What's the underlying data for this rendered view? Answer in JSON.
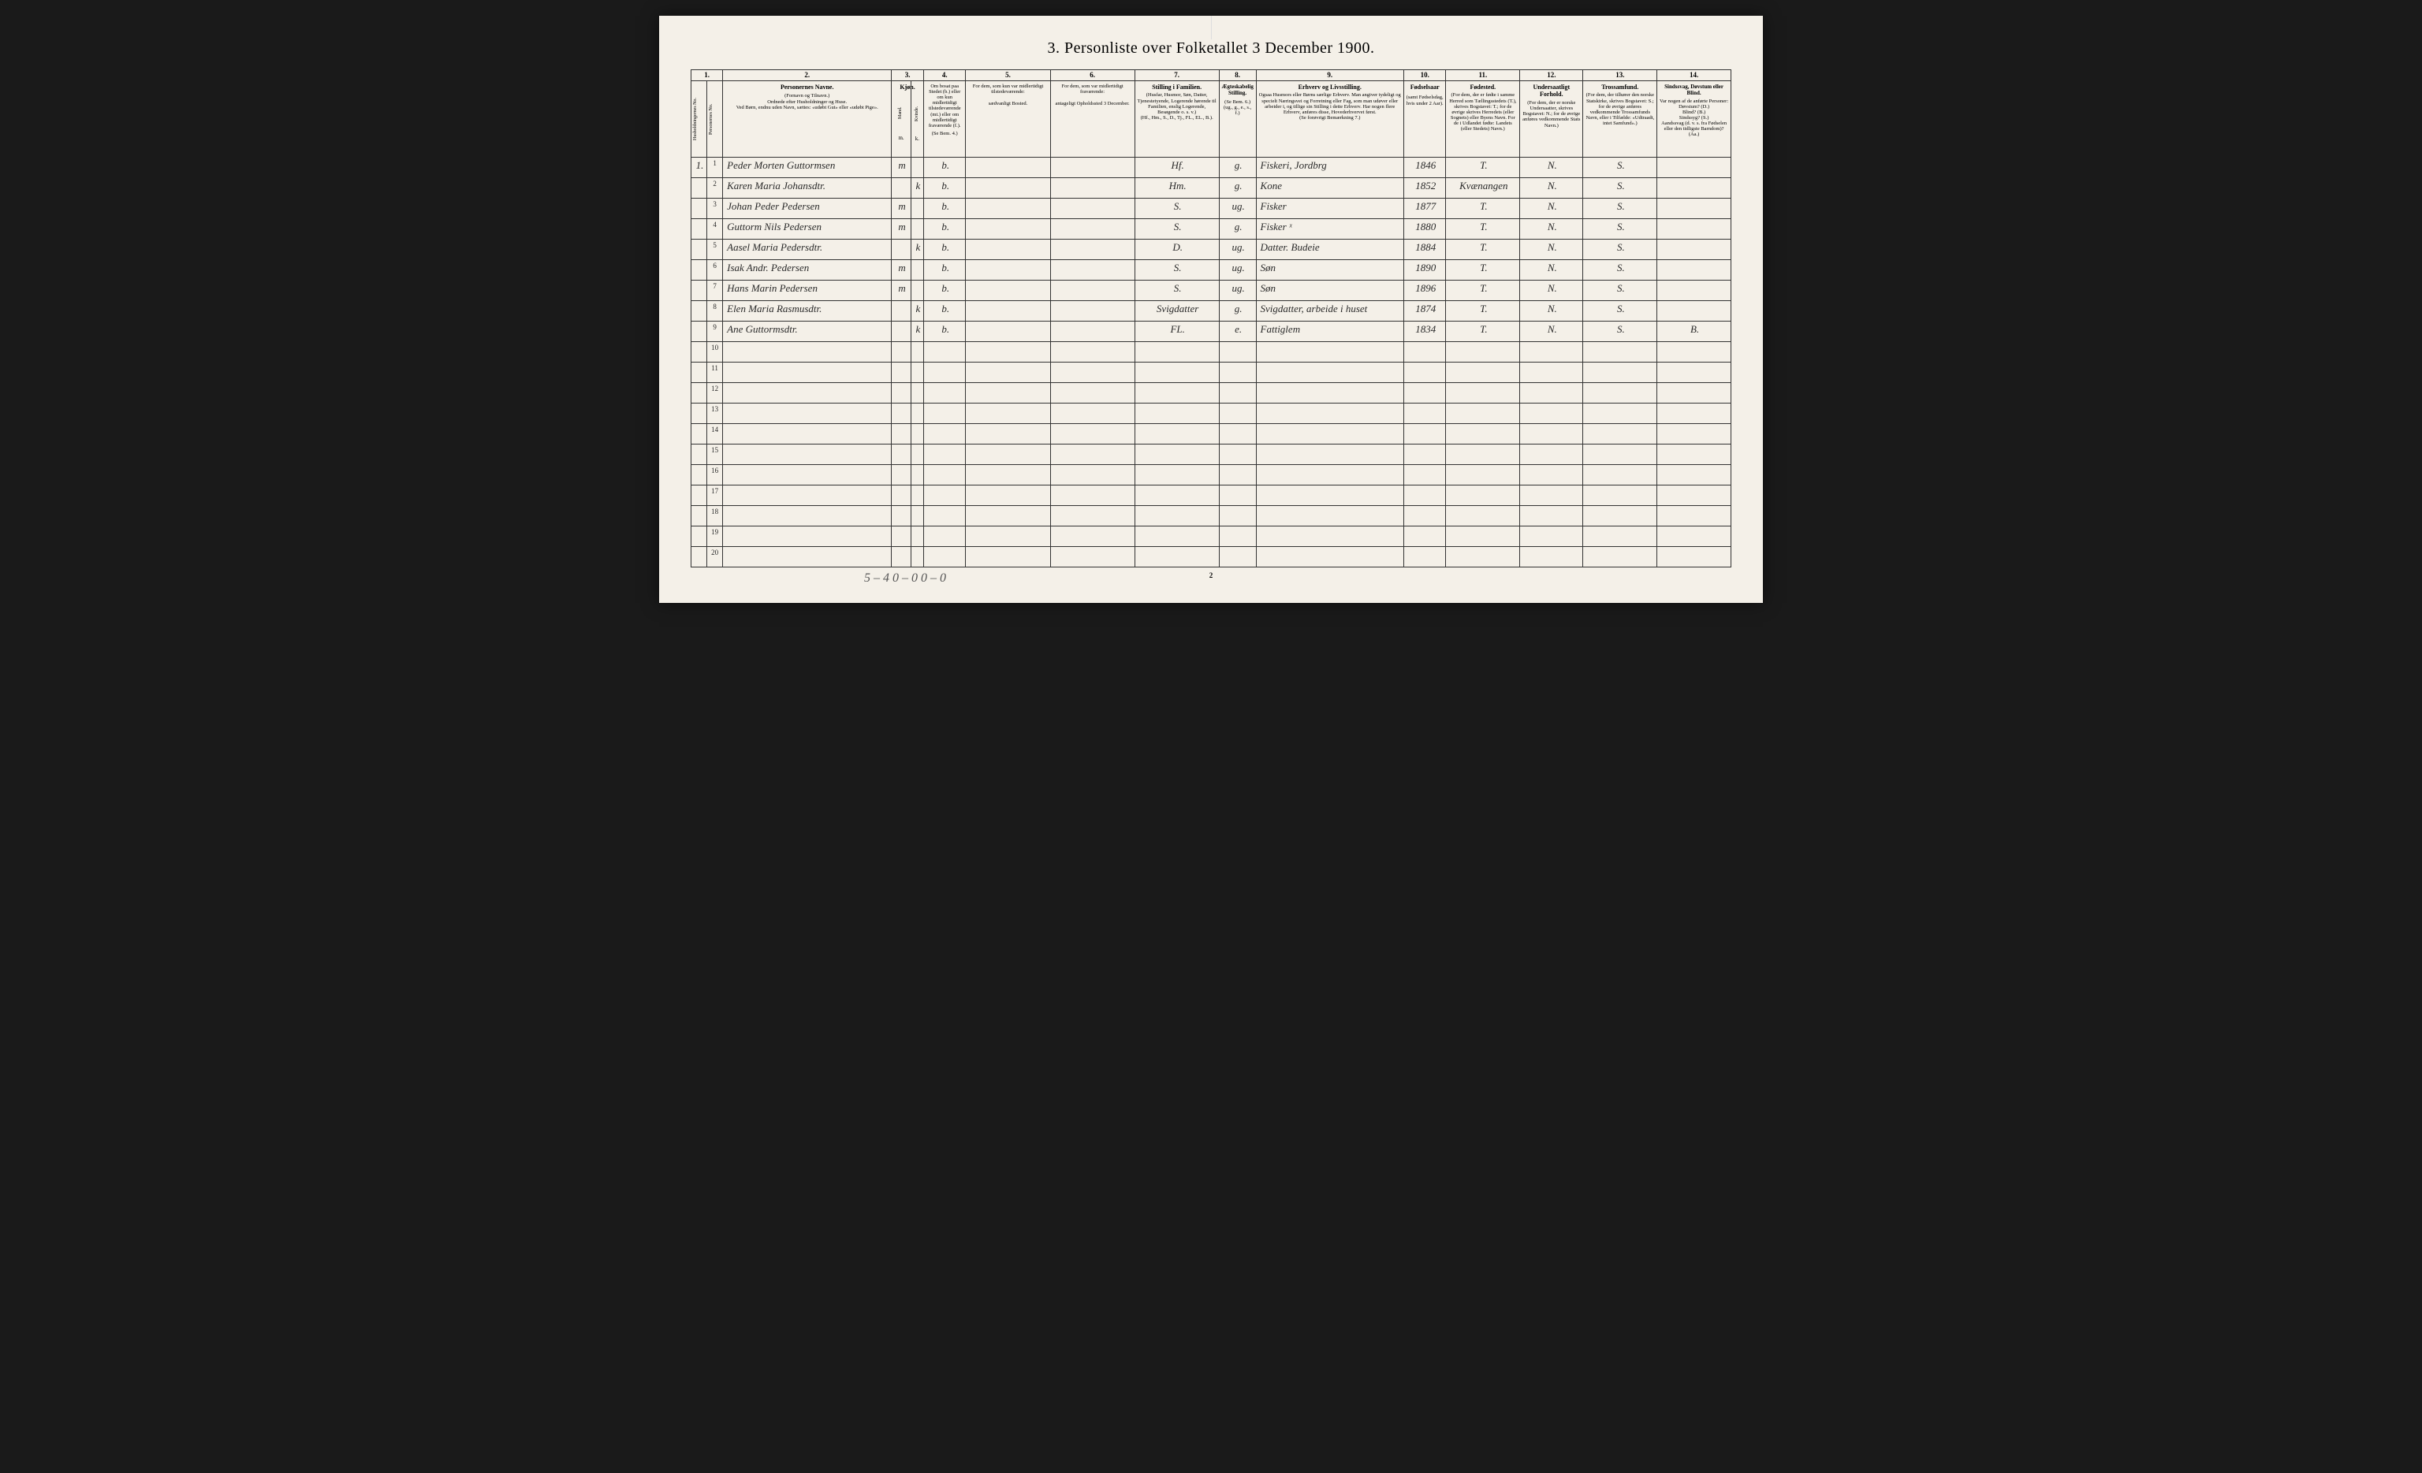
{
  "title": "3. Personliste over Folketallet 3 December 1900.",
  "column_numbers": [
    "1.",
    "",
    "2.",
    "3.",
    "",
    "4.",
    "5.",
    "6.",
    "7.",
    "8.",
    "9.",
    "10.",
    "11.",
    "12.",
    "13.",
    "14."
  ],
  "headers": {
    "col1": "Husholdningernes No.",
    "col1b": "Personernes No.",
    "col2_title": "Personernes Navne.",
    "col2_sub": "(Fornavn og Tilnavn.)\nOrdnede efter Husholdninger og Huse.\nVed Børn, endnu uden Navn, sættes: «udøbt Gut» eller «udøbt Pige».",
    "col3_title": "Kjøn.",
    "col3a": "Mand.",
    "col3b": "Kvinde.",
    "col3_foot": "m. k.",
    "col4_title": "Om bosat paa Stedet (b.) eller om kun midlertidigt tilstedeværende (mt.) eller om midlertidigt fraværende (f.).",
    "col4_foot": "(Se Bem. 4.)",
    "col5_title": "For dem, som kun var midlertidigt tilstedeværende:",
    "col5_sub": "sædvanligt Bosted.",
    "col6_title": "For dem, som var midlertidigt fraværende:",
    "col6_sub": "antageligt Opholdssted 3 December.",
    "col7_title": "Stilling i Familien.",
    "col7_sub": "(Husfar, Husmor, Søn, Datter, Tjenestetyende, Logerende hørende til Familien, enslig Logerende, Besøgende o. s. v.)\n(Hf., Hm., S., D., Tj., FL., EL., B.).",
    "col8_title": "Ægteskabelig Stilling.",
    "col8_sub": "(Se Bem. 6.)\n(ug., g., e., s., f.)",
    "col9_title": "Erhverv og Livsstilling.",
    "col9_sub": "Ogsaa Husmors eller Børns særlige Erhverv. Man angiver tydeligt og specielt Næringsvei og Forretning eller Fag, som man udøver eller arbeider i, og tillige sin Stilling i dette Erhverv. Har nogen flere Erhverv, anføres disse, Hovederhvervet først.\n(Se forøvrigt Bemærkning 7.)",
    "col10_title": "Fødselsaar",
    "col10_sub": "(samt Fødselsdag, hvis under 2 Aar).",
    "col11_title": "Fødested.",
    "col11_sub": "(For dem, der er fødte i samme Herred som Tællingsstedets (T.), skrives Bogstavet: T.; for de øvrige skrives Herredets (eller Sognets) eller Byens Navn. For de i Udlandet fødte: Landets (eller Stedets) Navn.)",
    "col12_title": "Undersaatligt Forhold.",
    "col12_sub": "(For dem, der er norske Undersaatter, skrives Bogstavet: N.; for de øvrige anføres vedkommende Stats Navn.)",
    "col13_title": "Trossamfund.",
    "col13_sub": "(For dem, der tilhører den norske Statskirke, skrives Bogstavet: S.; for de øvrige anføres vedkommende Trossamfunds Navn, eller i Tilfælde: «Udtraadt, intet Samfund».)",
    "col14_title": "Sindssvag, Døvstum eller Blind.",
    "col14_sub": "Var nogen af de anførte Personer:\nDøvstum? (D.)\nBlind? (B.)\nSindssyg? (S.)\nAandssvag (d. v. s. fra Fødselen eller den tidligste Barndom)? (Aa.)"
  },
  "rows": [
    {
      "hh": "1.",
      "num": "1",
      "name": "Peder Morten Guttormsen",
      "m": "m",
      "k": "",
      "b": "b.",
      "c5": "",
      "c6": "",
      "fam": "Hf.",
      "civ": "g.",
      "occ": "Fiskeri, Jordbrg",
      "year": "1846",
      "birth": "T.",
      "nat": "N.",
      "rel": "S.",
      "dis": ""
    },
    {
      "hh": "",
      "num": "2",
      "name": "Karen Maria Johansdtr.",
      "m": "",
      "k": "k",
      "b": "b.",
      "c5": "",
      "c6": "",
      "fam": "Hm.",
      "civ": "g.",
      "occ": "Kone",
      "year": "1852",
      "birth": "Kvænangen",
      "nat": "N.",
      "rel": "S.",
      "dis": ""
    },
    {
      "hh": "",
      "num": "3",
      "name": "Johan Peder Pedersen",
      "m": "m",
      "k": "",
      "b": "b.",
      "c5": "",
      "c6": "",
      "fam": "S.",
      "civ": "ug.",
      "occ": "Fisker",
      "year": "1877",
      "birth": "T.",
      "nat": "N.",
      "rel": "S.",
      "dis": ""
    },
    {
      "hh": "",
      "num": "4",
      "name": "Guttorm Nils Pedersen",
      "m": "m",
      "k": "",
      "b": "b.",
      "c5": "",
      "c6": "",
      "fam": "S.",
      "civ": "g.",
      "occ": "Fisker ˣ",
      "year": "1880",
      "birth": "T.",
      "nat": "N.",
      "rel": "S.",
      "dis": ""
    },
    {
      "hh": "",
      "num": "5",
      "name": "Aasel Maria Pedersdtr.",
      "m": "",
      "k": "k",
      "b": "b.",
      "c5": "",
      "c6": "",
      "fam": "D.",
      "civ": "ug.",
      "occ": "Datter. Budeie",
      "year": "1884",
      "birth": "T.",
      "nat": "N.",
      "rel": "S.",
      "dis": ""
    },
    {
      "hh": "",
      "num": "6",
      "name": "Isak Andr. Pedersen",
      "m": "m",
      "k": "",
      "b": "b.",
      "c5": "",
      "c6": "",
      "fam": "S.",
      "civ": "ug.",
      "occ": "Søn",
      "year": "1890",
      "birth": "T.",
      "nat": "N.",
      "rel": "S.",
      "dis": ""
    },
    {
      "hh": "",
      "num": "7",
      "name": "Hans Marin Pedersen",
      "m": "m",
      "k": "",
      "b": "b.",
      "c5": "",
      "c6": "",
      "fam": "S.",
      "civ": "ug.",
      "occ": "Søn",
      "year": "1896",
      "birth": "T.",
      "nat": "N.",
      "rel": "S.",
      "dis": ""
    },
    {
      "hh": "",
      "num": "8",
      "name": "Elen Maria Rasmusdtr.",
      "m": "",
      "k": "k",
      "b": "b.",
      "c5": "",
      "c6": "",
      "fam": "Svigdatter",
      "civ": "g.",
      "occ": "Svigdatter, arbeide i huset",
      "year": "1874",
      "birth": "T.",
      "nat": "N.",
      "rel": "S.",
      "dis": ""
    },
    {
      "hh": "",
      "num": "9",
      "name": "Ane Guttormsdtr.",
      "m": "",
      "k": "k",
      "b": "b.",
      "c5": "",
      "c6": "",
      "fam": "FL.",
      "civ": "e.",
      "occ": "Fattiglem",
      "year": "1834",
      "birth": "T.",
      "nat": "N.",
      "rel": "S.",
      "dis": "B."
    }
  ],
  "empty_rows": [
    10,
    11,
    12,
    13,
    14,
    15,
    16,
    17,
    18,
    19,
    20
  ],
  "footer_note": "5 – 4 0 – 0 0 – 0",
  "page_num": "2",
  "styling": {
    "page_bg": "#f4f0e8",
    "body_bg": "#1a1a1a",
    "border_color": "#333",
    "handwriting_color": "#2a2a2a",
    "title_fontsize": 20,
    "header_fontsize": 7,
    "cell_fontsize": 13
  }
}
